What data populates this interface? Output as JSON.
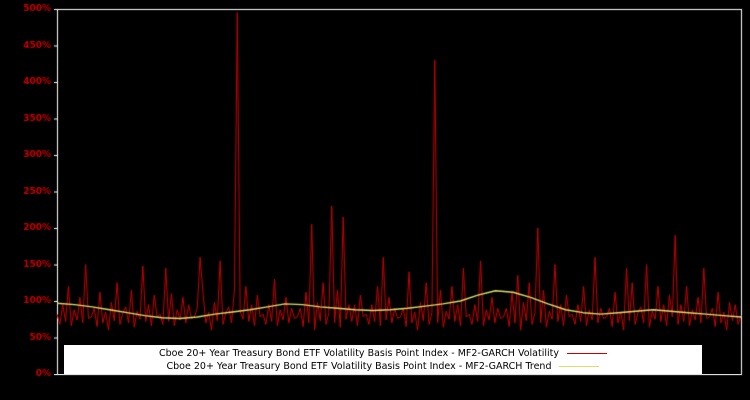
{
  "colors": {
    "background": "#000000",
    "frame": "#ffffff",
    "axis_label": "#cc0000",
    "volatility_line": "#cc0000",
    "trend_line": "#dede6b",
    "legend_background": "#ffffff",
    "legend_text": "#000000"
  },
  "chart_data": {
    "type": "line",
    "title": "",
    "xlabel": "",
    "ylabel": "",
    "units": "percent",
    "ylim": [
      0,
      500
    ],
    "ytick_values": [
      0,
      50,
      100,
      150,
      200,
      250,
      300,
      350,
      400,
      450,
      500
    ],
    "ytick_labels": [
      "0%",
      "50%",
      "100%",
      "150%",
      "200%",
      "250%",
      "300%",
      "350%",
      "400%",
      "450%",
      "500%"
    ],
    "grid": false,
    "legend_position": "bottom-center",
    "series": [
      {
        "name": "Cboe 20+ Year Treasury Bond ETF Volatility Basis Point Index - MF2-GARCH Volatility",
        "color": "#cc0000",
        "line_width": 1,
        "values": [
          82,
          68,
          95,
          72,
          120,
          66,
          88,
          74,
          105,
          70,
          150,
          76,
          78,
          90,
          65,
          112,
          70,
          85,
          60,
          98,
          73,
          125,
          68,
          84,
          92,
          70,
          115,
          64,
          86,
          75,
          148,
          72,
          95,
          66,
          108,
          78,
          82,
          68,
          145,
          72,
          110,
          66,
          88,
          74,
          105,
          70,
          95,
          76,
          78,
          90,
          160,
          112,
          70,
          85,
          60,
          98,
          73,
          155,
          68,
          84,
          92,
          70,
          115,
          495,
          86,
          75,
          120,
          72,
          95,
          66,
          108,
          78,
          82,
          68,
          95,
          72,
          130,
          66,
          88,
          74,
          105,
          70,
          90,
          76,
          78,
          90,
          65,
          112,
          70,
          205,
          60,
          98,
          73,
          125,
          68,
          84,
          230,
          70,
          115,
          64,
          215,
          75,
          95,
          72,
          95,
          66,
          108,
          78,
          82,
          68,
          95,
          72,
          120,
          66,
          160,
          74,
          105,
          70,
          90,
          76,
          78,
          90,
          65,
          140,
          70,
          85,
          60,
          98,
          73,
          125,
          68,
          84,
          430,
          70,
          115,
          64,
          86,
          75,
          120,
          72,
          95,
          66,
          145,
          78,
          82,
          68,
          95,
          72,
          155,
          66,
          88,
          74,
          105,
          70,
          90,
          76,
          78,
          90,
          65,
          112,
          70,
          135,
          60,
          98,
          73,
          125,
          68,
          84,
          200,
          70,
          115,
          64,
          86,
          75,
          150,
          72,
          95,
          66,
          108,
          78,
          82,
          68,
          95,
          72,
          120,
          66,
          88,
          74,
          160,
          70,
          90,
          76,
          78,
          90,
          65,
          112,
          70,
          85,
          60,
          145,
          73,
          125,
          68,
          84,
          92,
          70,
          150,
          64,
          86,
          75,
          120,
          72,
          95,
          66,
          108,
          78,
          190,
          68,
          95,
          72,
          120,
          66,
          88,
          74,
          105,
          70,
          145,
          76,
          78,
          90,
          65,
          112,
          70,
          85,
          60,
          98,
          73,
          95,
          68,
          80
        ]
      },
      {
        "name": "Cboe 20+ Year Treasury Bond ETF Volatility Basis Point Index - MF2-GARCH Trend",
        "color": "#dede6b",
        "line_width": 1.4,
        "values": [
          97,
          95,
          92,
          88,
          84,
          80,
          77,
          76,
          78,
          82,
          85,
          88,
          92,
          96,
          95,
          92,
          90,
          88,
          87,
          88,
          90,
          93,
          96,
          100,
          108,
          114,
          112,
          105,
          96,
          88,
          84,
          82,
          84,
          86,
          88,
          86,
          84,
          82,
          80,
          78
        ]
      }
    ]
  },
  "legend": {
    "entries": [
      {
        "label": "Cboe 20+ Year Treasury Bond ETF Volatility Basis Point Index - MF2-GARCH Volatility"
      },
      {
        "label": "Cboe 20+ Year Treasury Bond ETF Volatility Basis Point Index - MF2-GARCH Trend"
      }
    ]
  }
}
